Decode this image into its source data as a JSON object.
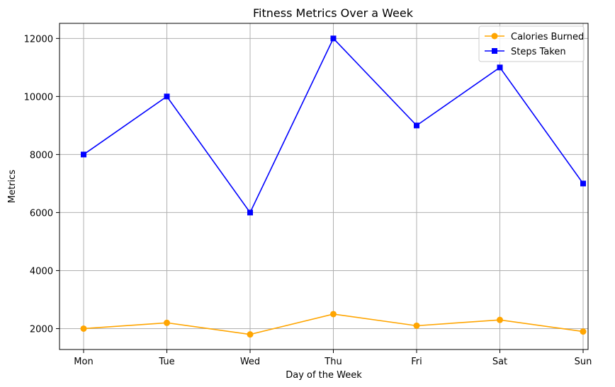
{
  "chart_data": {
    "type": "line",
    "title": "Fitness Metrics Over a Week",
    "xlabel": "Day of the Week",
    "ylabel": "Metrics",
    "categories": [
      "Mon",
      "Tue",
      "Wed",
      "Thu",
      "Fri",
      "Sat",
      "Sun"
    ],
    "ylim": [
      1280,
      12520
    ],
    "yticks": [
      2000,
      4000,
      6000,
      8000,
      10000,
      12000
    ],
    "grid": true,
    "legend_position": "top-right",
    "series": [
      {
        "name": "Calories Burned",
        "values": [
          2000,
          2200,
          1800,
          2500,
          2100,
          2300,
          1900
        ],
        "color": "#ffa500",
        "marker": "circle"
      },
      {
        "name": "Steps Taken",
        "values": [
          8000,
          10000,
          6000,
          12000,
          9000,
          11000,
          7000
        ],
        "color": "#0000ff",
        "marker": "square"
      }
    ]
  }
}
